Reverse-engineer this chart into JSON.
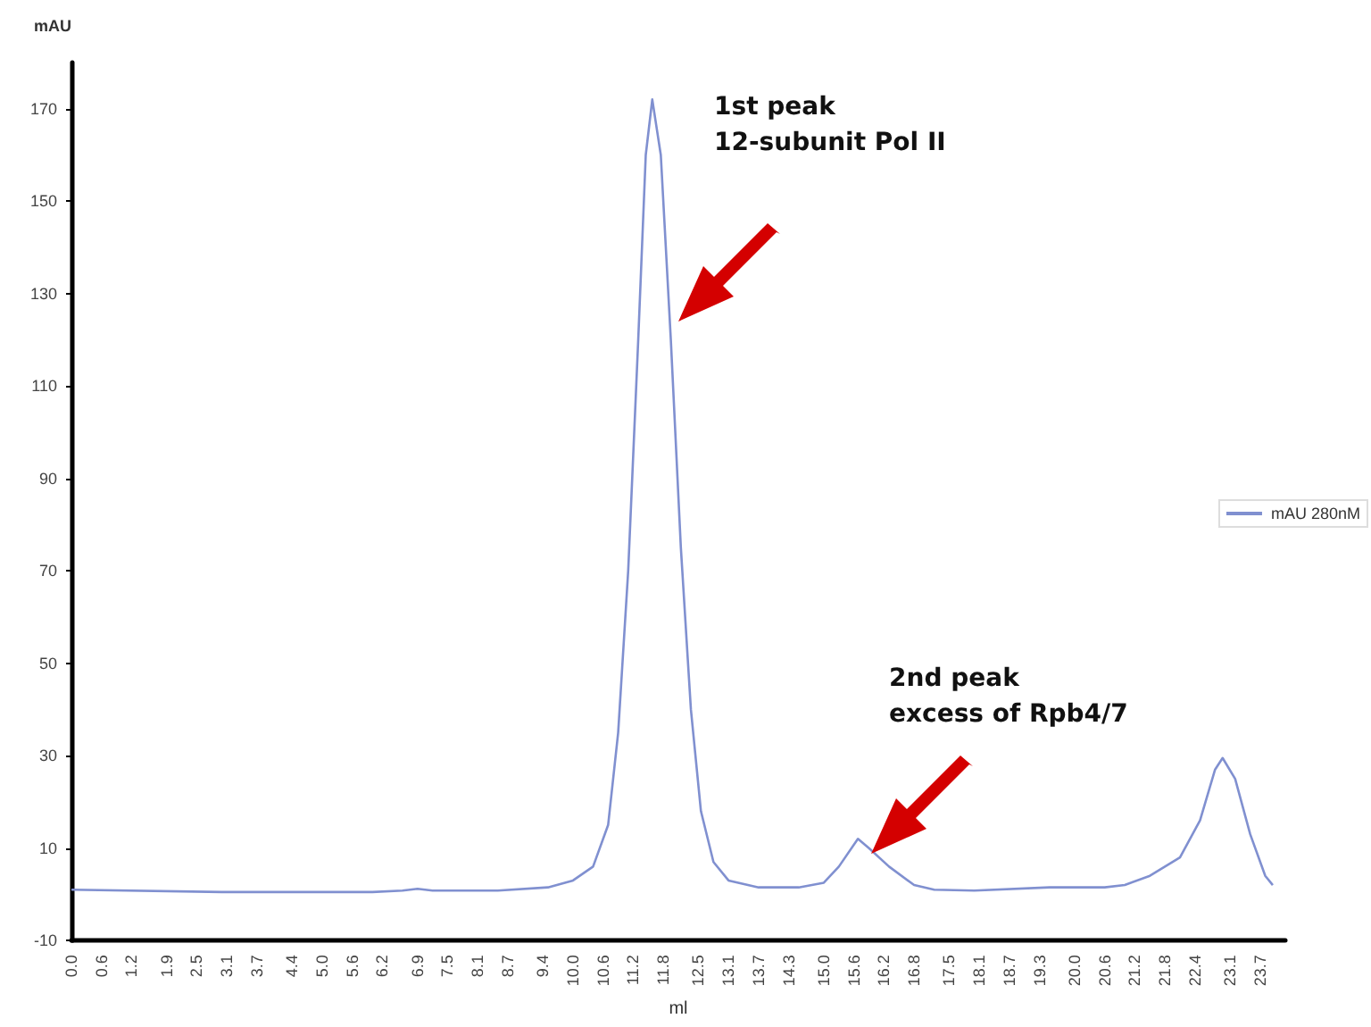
{
  "chart_data": {
    "type": "line",
    "ylabel": "mAU",
    "xlabel": "ml",
    "series": [
      {
        "name": "mAU 280nM",
        "color": "#8090d0",
        "x": [
          0,
          3,
          6,
          6.6,
          6.9,
          7.2,
          8.5,
          9.5,
          10.0,
          10.4,
          10.7,
          10.9,
          11.1,
          11.3,
          11.45,
          11.58,
          11.75,
          11.95,
          12.15,
          12.35,
          12.55,
          12.8,
          13.1,
          13.7,
          14.5,
          15.0,
          15.3,
          15.68,
          15.9,
          16.3,
          16.8,
          17.2,
          18,
          19.5,
          20.6,
          21.0,
          21.5,
          22.1,
          22.5,
          22.8,
          22.95,
          23.2,
          23.5,
          23.8,
          23.95
        ],
        "values": [
          1,
          0.5,
          0.5,
          0.8,
          1.2,
          0.8,
          0.8,
          1.5,
          3,
          6,
          15,
          35,
          70,
          120,
          160,
          172,
          160,
          120,
          75,
          40,
          18,
          7,
          3,
          1.5,
          1.5,
          2.5,
          6,
          12,
          10,
          6,
          2,
          1,
          0.8,
          1.5,
          1.5,
          2,
          4,
          8,
          16,
          27,
          29.5,
          25,
          13,
          4,
          2
        ]
      }
    ],
    "xlim": [
      0,
      24.2
    ],
    "xticks": [
      {
        "value": 0,
        "label": "0.0"
      },
      0.6,
      1.2,
      1.9,
      2.5,
      3.1,
      3.7,
      4.4,
      {
        "value": 5,
        "label": "5.0"
      },
      5.6,
      6.2,
      6.9,
      7.5,
      8.1,
      8.7,
      9.4,
      {
        "value": 10,
        "label": "10.0"
      },
      10.6,
      11.2,
      11.8,
      12.5,
      13.1,
      13.7,
      14.3,
      {
        "value": 15,
        "label": "15.0"
      },
      15.6,
      16.2,
      16.8,
      17.5,
      18.1,
      18.7,
      19.3,
      {
        "value": 20,
        "label": "20.0"
      },
      20.6,
      21.2,
      21.8,
      22.4,
      23.1,
      23.7
    ],
    "ylim": [
      -10,
      180
    ],
    "yticks": [
      -10,
      10,
      30,
      50,
      70,
      90,
      110,
      130,
      150,
      170
    ],
    "annotations": [
      "1st peak\n12-subunit Pol II",
      "2nd peak\nexcess of Rpb4/7"
    ],
    "legend": "right",
    "grid": false,
    "marker": "none",
    "line_style": "solid"
  }
}
